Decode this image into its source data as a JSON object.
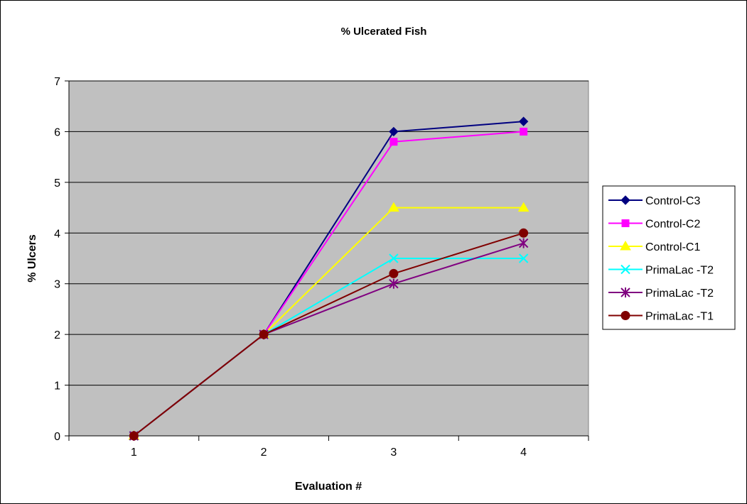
{
  "chart_data": {
    "type": "line",
    "title": "% Ulcerated Fish",
    "xlabel": "Evaluation #",
    "ylabel": "% Ulcers",
    "categories": [
      "1",
      "2",
      "3",
      "4"
    ],
    "ylim": [
      0,
      7
    ],
    "yticks": [
      "0",
      "1",
      "2",
      "3",
      "4",
      "5",
      "6",
      "7"
    ],
    "grid": true,
    "plot_background": "#C0C0C0",
    "legend_position": "right",
    "series": [
      {
        "name": "Control-C3",
        "color": "#000080",
        "marker": "diamond",
        "values": [
          0,
          2,
          6.0,
          6.2
        ]
      },
      {
        "name": "Control-C2",
        "color": "#FF00FF",
        "marker": "square",
        "values": [
          0,
          2,
          5.8,
          6.0
        ]
      },
      {
        "name": "Control-C1",
        "color": "#FFFF00",
        "marker": "triangle",
        "values": [
          0,
          2,
          4.5,
          4.5
        ]
      },
      {
        "name": "PrimaLac -T2",
        "color": "#00FFFF",
        "marker": "x",
        "values": [
          0,
          2,
          3.5,
          3.5
        ]
      },
      {
        "name": "PrimaLac -T2",
        "color": "#800080",
        "marker": "star",
        "values": [
          0,
          2,
          3.0,
          3.8
        ]
      },
      {
        "name": "PrimaLac -T1",
        "color": "#800000",
        "marker": "circle",
        "values": [
          0,
          2,
          3.2,
          4.0
        ]
      }
    ]
  }
}
